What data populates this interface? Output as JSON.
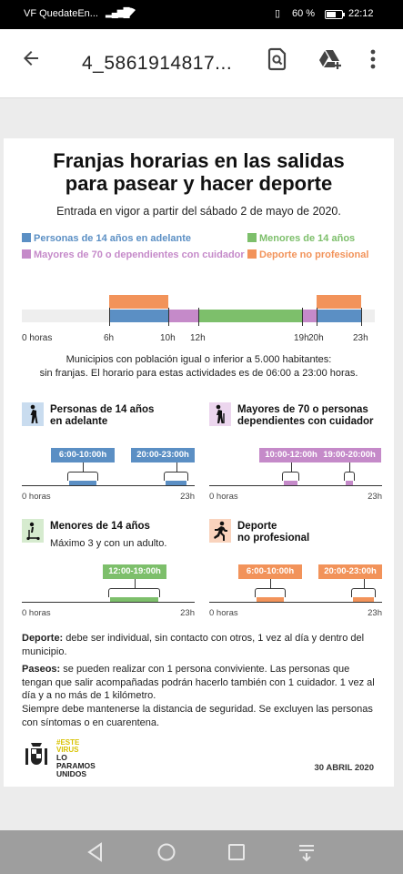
{
  "status": {
    "carrier": "VF QuedateEn...",
    "battery": "60 %",
    "time": "22:12"
  },
  "appbar": {
    "title": "4_5861914817...",
    "icons": [
      "back-arrow-icon",
      "find-in-page-icon",
      "add-to-drive-icon",
      "more-vert-icon"
    ]
  },
  "doc": {
    "title_line1": "Franjas horarias en las salidas",
    "title_line2": "para pasear y hacer deporte",
    "subtitle": "Entrada en vigor a partir del sábado 2 de mayo de 2020.",
    "colors": {
      "blue": "#5b8fc4",
      "green": "#7dbf6b",
      "purple": "#c58ac9",
      "orange": "#f2935a"
    },
    "legend": [
      {
        "label": "Personas de 14 años en adelante",
        "color": "#5b8fc4"
      },
      {
        "label": "Menores de 14 años",
        "color": "#7dbf6b"
      },
      {
        "label": "Mayores de 70 o dependientes con cuidador",
        "color": "#c58ac9"
      },
      {
        "label": "Deporte no profesional",
        "color": "#f2935a"
      }
    ],
    "timeline": {
      "start_label": "0 horas",
      "ticks": [
        "6h",
        "10h",
        "12h",
        "19h",
        "20h",
        "23h"
      ],
      "segments": [
        {
          "start": 6,
          "end": 10,
          "color": "#5b8fc4"
        },
        {
          "start": 10,
          "end": 12,
          "color": "#c58ac9"
        },
        {
          "start": 12,
          "end": 19,
          "color": "#7dbf6b"
        },
        {
          "start": 19,
          "end": 20,
          "color": "#c58ac9"
        },
        {
          "start": 20,
          "end": 23,
          "color": "#5b8fc4"
        },
        {
          "start": 6,
          "end": 10,
          "color": "#f2935a",
          "top": true
        },
        {
          "start": 20,
          "end": 23,
          "color": "#f2935a",
          "top": true
        }
      ]
    },
    "note_line1": "Municipios con población igual o inferior a 5.000 habitantes:",
    "note_line2": "sin franjas. El horario para estas actividades es de 06:00 a 23:00 horas.",
    "panels": [
      {
        "title_line1": "Personas de 14 años",
        "title_line2": "en adelante",
        "extra": "",
        "icon": "walking-person-icon",
        "color": "#5b8fc4",
        "axis_start": "0 horas",
        "axis_end": "23h",
        "slots": [
          {
            "label": "6:00-10:00h",
            "start": 6,
            "end": 10
          },
          {
            "label": "20:00-23:00h",
            "start": 20,
            "end": 23
          }
        ]
      },
      {
        "title_line1": "Mayores de 70 o personas",
        "title_line2": "dependientes con cuidador",
        "extra": "",
        "icon": "elderly-person-cane-icon",
        "color": "#c58ac9",
        "axis_start": "0 horas",
        "axis_end": "23h",
        "slots": [
          {
            "label": "10:00-12:00h",
            "start": 10,
            "end": 12
          },
          {
            "label": "19:00-20:00h",
            "start": 19,
            "end": 20
          }
        ]
      },
      {
        "title_line1": "Menores de 14 años",
        "title_line2": "",
        "extra": "Máximo 3 y con un adulto.",
        "icon": "child-scooter-icon",
        "color": "#7dbf6b",
        "axis_start": "0 horas",
        "axis_end": "23h",
        "slots": [
          {
            "label": "12:00-19:00h",
            "start": 12,
            "end": 19
          }
        ]
      },
      {
        "title_line1": "Deporte",
        "title_line2": "no profesional",
        "extra": "",
        "icon": "running-person-icon",
        "color": "#f2935a",
        "axis_start": "0 horas",
        "axis_end": "23h",
        "slots": [
          {
            "label": "6:00-10:00h",
            "start": 6,
            "end": 10
          },
          {
            "label": "20:00-23:00h",
            "start": 20,
            "end": 23
          }
        ]
      }
    ],
    "deporte_label": "Deporte:",
    "deporte_text": "debe ser individual, sin contacto con otros, 1 vez al día y dentro del municipio.",
    "paseos_label": "Paseos:",
    "paseos_text": "se pueden realizar con 1 persona conviviente. Las personas que tengan que salir acompañadas podrán hacerlo también con 1 cuidador. 1 vez al día y a no más de 1 kilómetro.",
    "distancia_text": "Siempre debe mantenerse la distancia de seguridad. Se excluyen las personas con síntomas o en cuarentena.",
    "logo_tag_1": "#ESTE",
    "logo_tag_2": "VIRUS",
    "logo_motto_1": "LO",
    "logo_motto_2": "PARAMOS",
    "logo_motto_3": "UNIDOS",
    "date": "30 ABRIL 2020"
  },
  "navbar": {
    "icons": [
      "nav-back-icon",
      "nav-home-icon",
      "nav-recents-icon",
      "nav-notifications-icon"
    ]
  }
}
